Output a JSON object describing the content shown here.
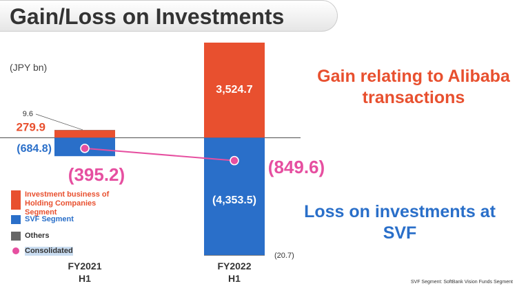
{
  "chart_data": {
    "type": "bar",
    "stacked": true,
    "title": "Gain/Loss on Investments",
    "unit_label": "(JPY bn)",
    "categories": [
      "FY2021 H1",
      "FY2022 H1"
    ],
    "series": [
      {
        "name": "Investment business of Holding Companies Segment",
        "color": "#e8502f",
        "values": [
          279.9,
          3524.7
        ],
        "value_labels": [
          "279.9",
          "3,524.7"
        ]
      },
      {
        "name": "SVF Segment",
        "color": "#2a6fc9",
        "values": [
          -684.8,
          -4353.5
        ],
        "value_labels": [
          "(684.8)",
          "(4,353.5)"
        ]
      },
      {
        "name": "Others",
        "color": "#666666",
        "values": [
          9.6,
          -20.7
        ],
        "value_labels": [
          "9.6",
          "(20.7)"
        ]
      },
      {
        "name": "Consolidated",
        "type": "line",
        "color": "#e64fa0",
        "values": [
          -395.2,
          -849.6
        ],
        "value_labels": [
          "(395.2)",
          "(849.6)"
        ]
      }
    ],
    "annotations": [
      "Gain relating to Alibaba transactions",
      "Loss on investments at SVF"
    ],
    "footnote": "SVF Segment: SoftBank Vision Funds Segment"
  }
}
